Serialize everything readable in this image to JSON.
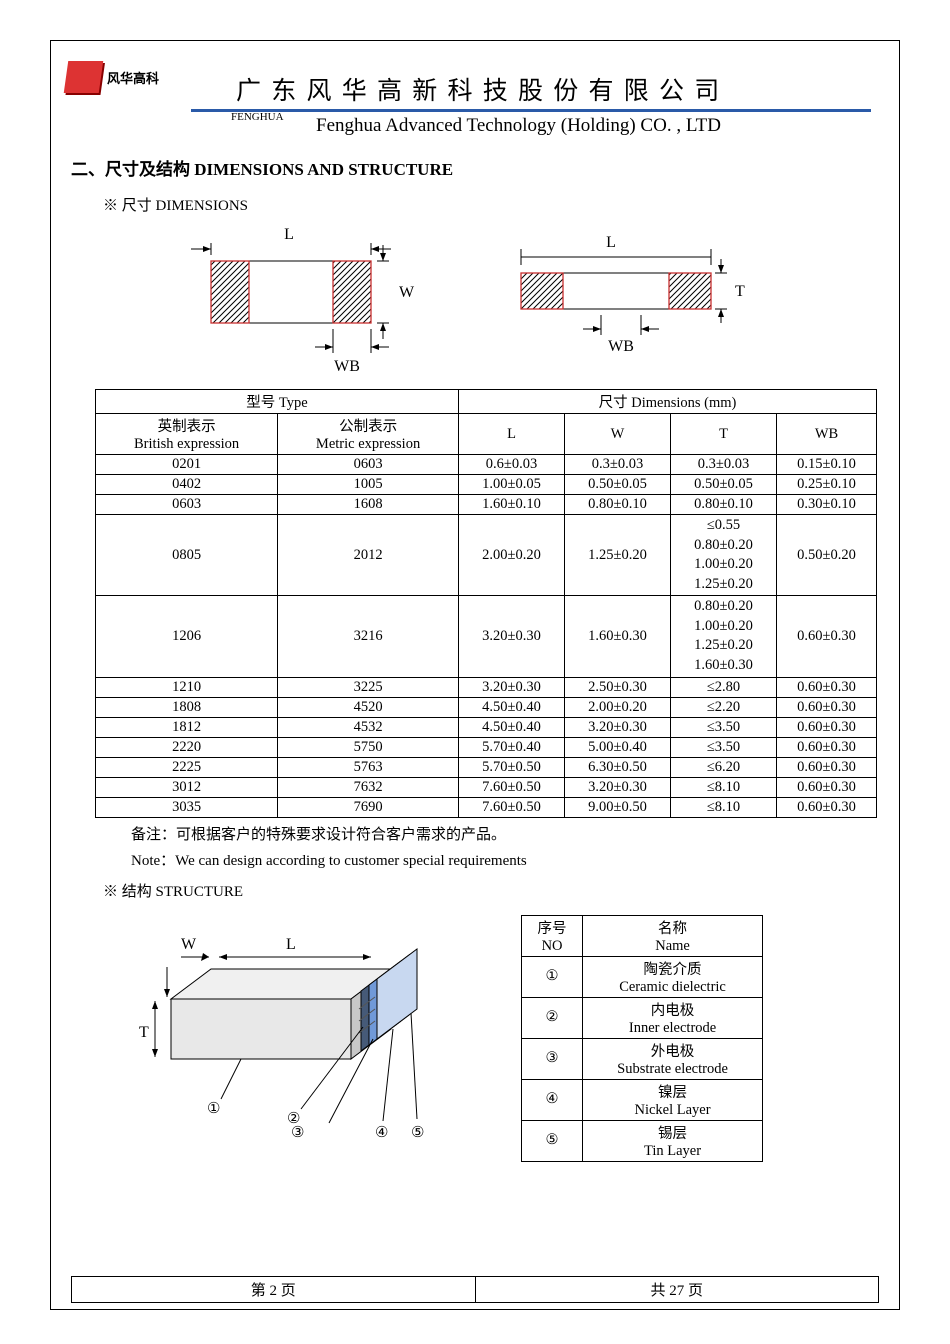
{
  "header": {
    "logo_text": "风华高科",
    "fenghua": "FENGHUA",
    "cn_title": "广 东 风 华 高 新 科 技 股 份 有 限 公 司",
    "en_title": "Fenghua Advanced Technology (Holding) CO. , LTD",
    "hr_color": "#2a5aa8",
    "logo_color": "#d33"
  },
  "section": {
    "title": "二、尺寸及结构   DIMENSIONS AND STRUCTURE",
    "dim_sub": "※ 尺寸 DIMENSIONS",
    "struct_sub": "※ 结构 STRUCTURE"
  },
  "diagram": {
    "labels": {
      "L": "L",
      "W": "W",
      "T": "T",
      "WB": "WB"
    },
    "hatch_color": "#000",
    "outline_color": "#c82f2f"
  },
  "dim_table": {
    "head": {
      "type": "型号 Type",
      "dims": "尺寸     Dimensions     (mm)",
      "brit_cn": "英制表示",
      "brit_en": "British expression",
      "met_cn": "公制表示",
      "met_en": "Metric expression",
      "L": "L",
      "W": "W",
      "T": "T",
      "WB": "WB"
    },
    "rows": [
      {
        "b": "0201",
        "m": "0603",
        "L": "0.6±0.03",
        "W": "0.3±0.03",
        "T": "0.3±0.03",
        "WB": "0.15±0.10"
      },
      {
        "b": "0402",
        "m": "1005",
        "L": "1.00±0.05",
        "W": "0.50±0.05",
        "T": "0.50±0.05",
        "WB": "0.25±0.10"
      },
      {
        "b": "0603",
        "m": "1608",
        "L": "1.60±0.10",
        "W": "0.80±0.10",
        "T": "0.80±0.10",
        "WB": "0.30±0.10"
      },
      {
        "b": "0805",
        "m": "2012",
        "L": "2.00±0.20",
        "W": "1.25±0.20",
        "T": "≤0.55\n0.80±0.20\n1.00±0.20\n1.25±0.20",
        "WB": "0.50±0.20"
      },
      {
        "b": "1206",
        "m": "3216",
        "L": "3.20±0.30",
        "W": "1.60±0.30",
        "T": "0.80±0.20\n1.00±0.20\n1.25±0.20\n1.60±0.30",
        "WB": "0.60±0.30"
      },
      {
        "b": "1210",
        "m": "3225",
        "L": "3.20±0.30",
        "W": "2.50±0.30",
        "T": "≤2.80",
        "WB": "0.60±0.30"
      },
      {
        "b": "1808",
        "m": "4520",
        "L": "4.50±0.40",
        "W": "2.00±0.20",
        "T": "≤2.20",
        "WB": "0.60±0.30"
      },
      {
        "b": "1812",
        "m": "4532",
        "L": "4.50±0.40",
        "W": "3.20±0.30",
        "T": "≤3.50",
        "WB": "0.60±0.30"
      },
      {
        "b": "2220",
        "m": "5750",
        "L": "5.70±0.40",
        "W": "5.00±0.40",
        "T": "≤3.50",
        "WB": "0.60±0.30"
      },
      {
        "b": "2225",
        "m": "5763",
        "L": "5.70±0.50",
        "W": "6.30±0.50",
        "T": "≤6.20",
        "WB": "0.60±0.30"
      },
      {
        "b": "3012",
        "m": "7632",
        "L": "7.60±0.50",
        "W": "3.20±0.30",
        "T": "≤8.10",
        "WB": "0.60±0.30"
      },
      {
        "b": "3035",
        "m": "7690",
        "L": "7.60±0.50",
        "W": "9.00±0.50",
        "T": "≤8.10",
        "WB": "0.60±0.30"
      }
    ]
  },
  "notes": {
    "cn": "备注：可根据客户的特殊要求设计符合客户需求的产品。",
    "en": "Note：We can design according to customer special requirements"
  },
  "struct_table": {
    "head": {
      "no_cn": "序号",
      "no_en": "NO",
      "name_cn": "名称",
      "name_en": "Name"
    },
    "rows": [
      {
        "n": "①",
        "cn": "陶瓷介质",
        "en": "Ceramic   dielectric"
      },
      {
        "n": "②",
        "cn": "内电极",
        "en": "Inner   electrode"
      },
      {
        "n": "③",
        "cn": "外电极",
        "en": "Substrate   electrode"
      },
      {
        "n": "④",
        "cn": "镍层",
        "en": "Nickel Layer"
      },
      {
        "n": "⑤",
        "cn": "锡层",
        "en": "Tin Layer"
      }
    ]
  },
  "struct_diagram": {
    "colors": {
      "body": "#e8e8e8",
      "body_side": "#b8b8b8",
      "term1": "#465a78",
      "term2": "#7099d8",
      "term3": "#c8d8f0"
    },
    "labels": {
      "W": "W",
      "L": "L",
      "T": "T",
      "1": "①",
      "2": "②",
      "3": "③",
      "4": "④",
      "5": "⑤"
    }
  },
  "footer": {
    "left": "第   2   页",
    "right": "共  27  页"
  }
}
